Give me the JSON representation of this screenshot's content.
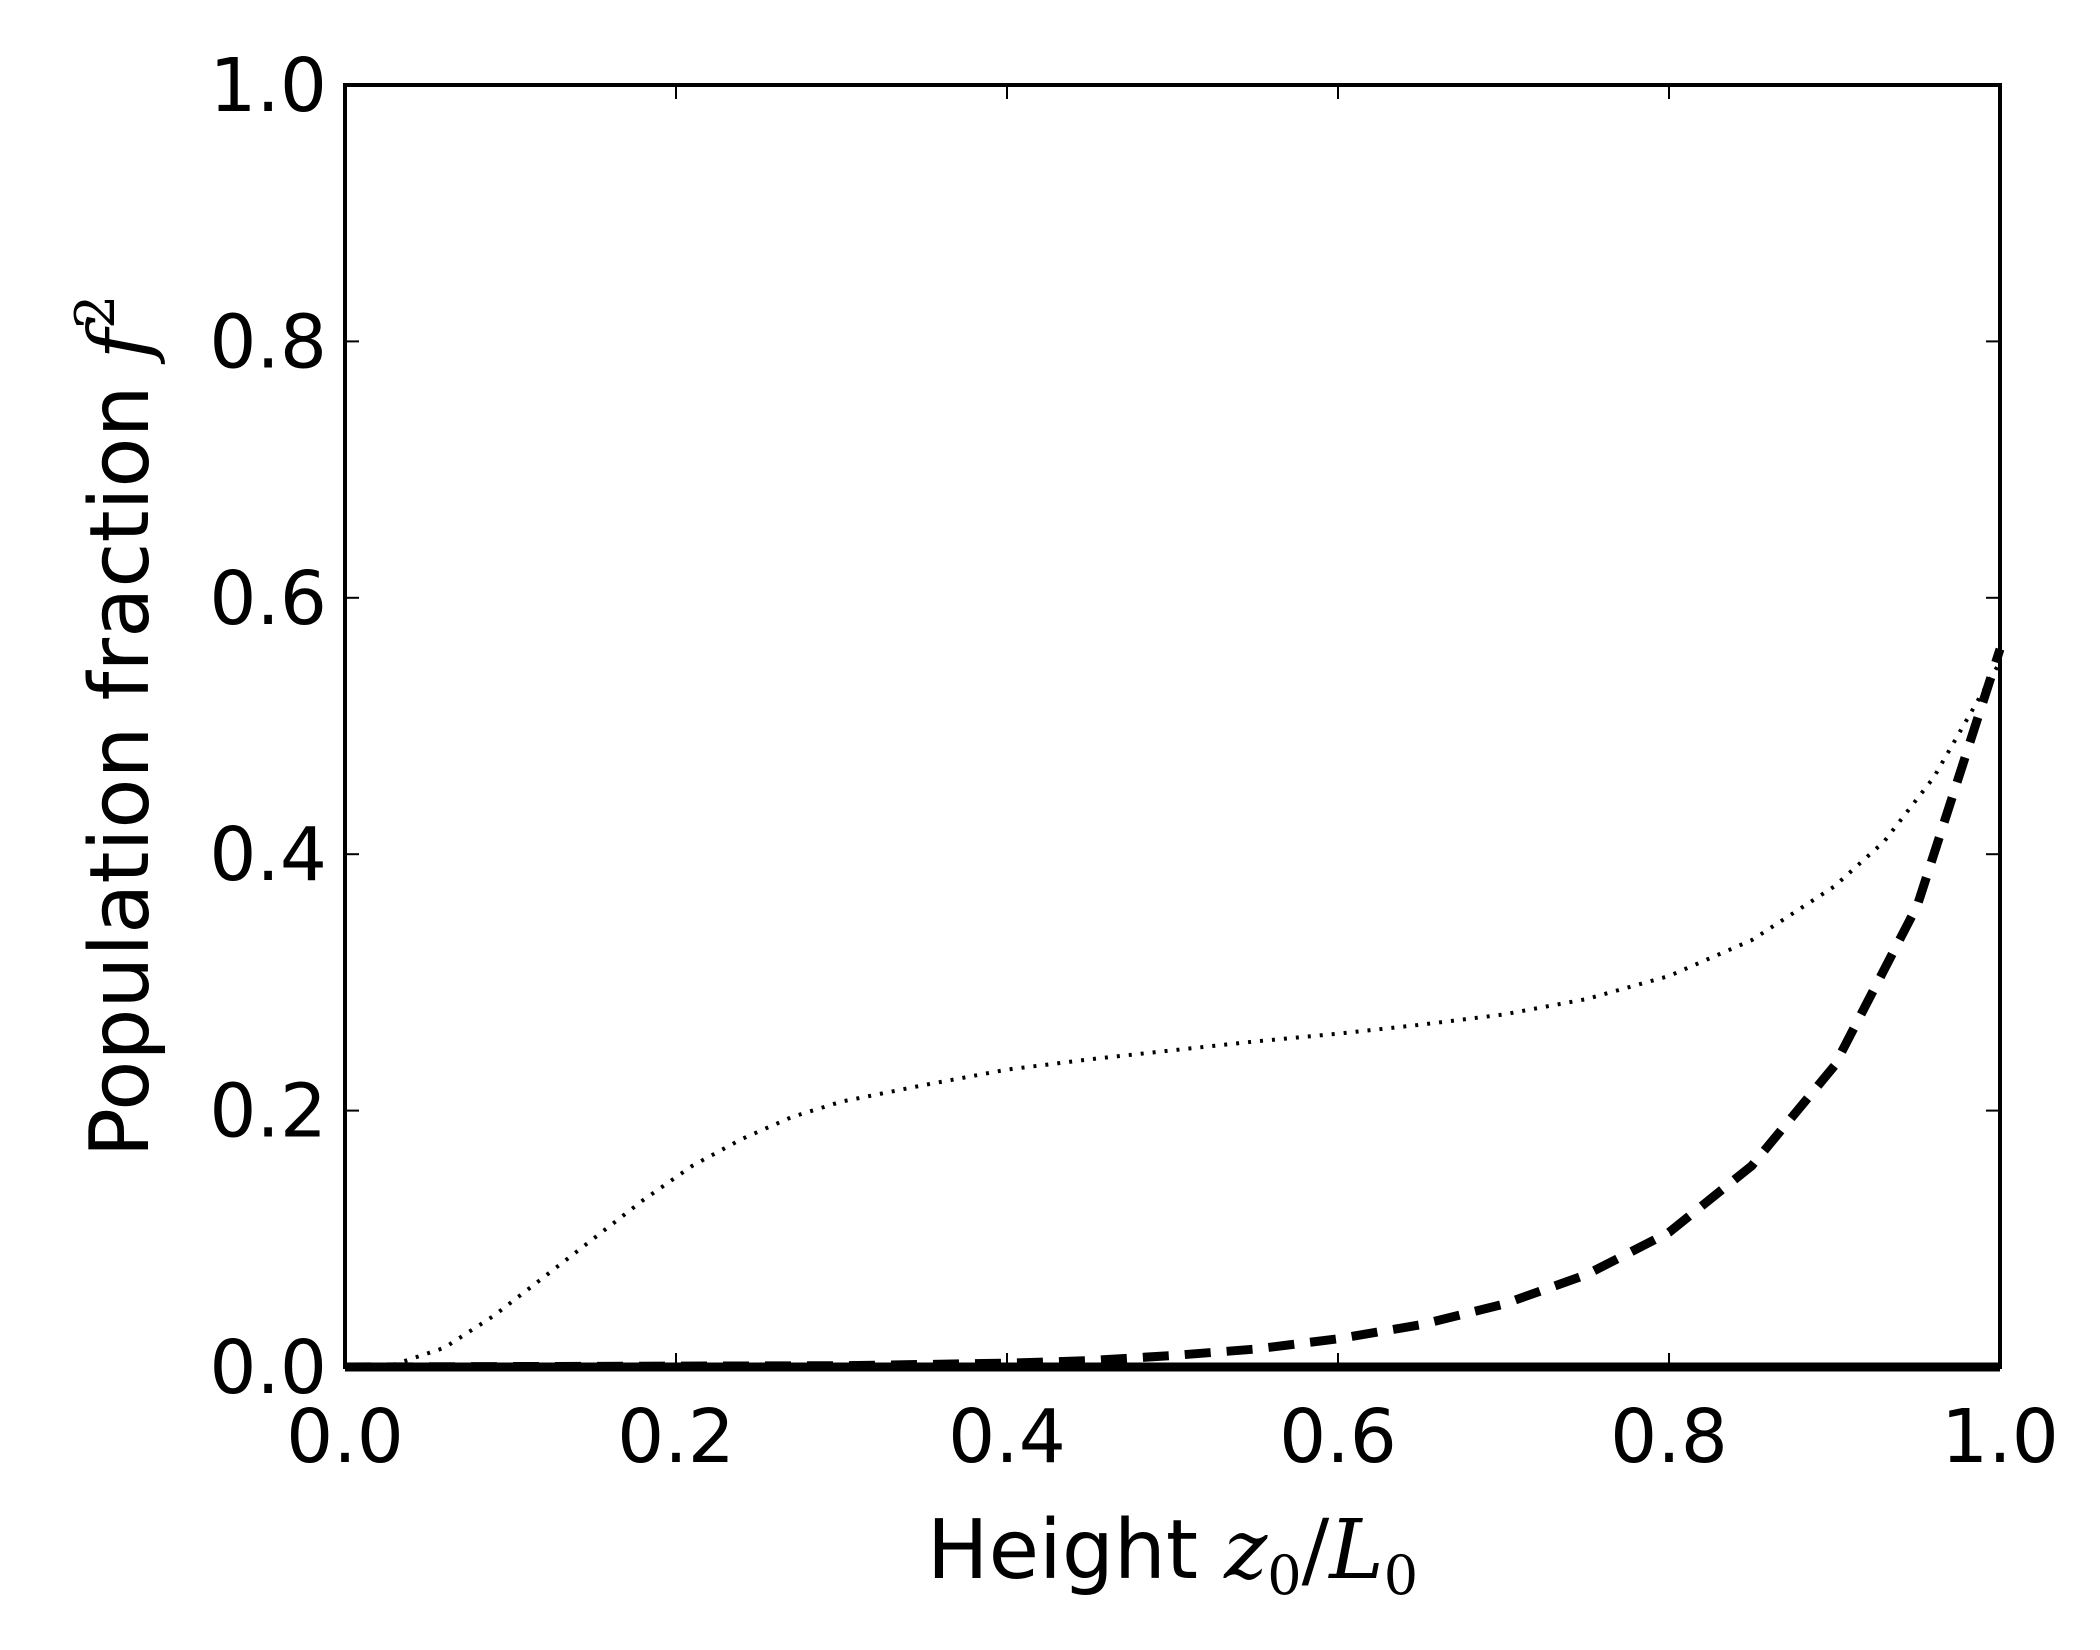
{
  "chart_data": {
    "type": "line",
    "xlabel": {
      "text": "Height ",
      "math_a": "z",
      "sub_a": "0",
      "slash": "/",
      "math_b": "L",
      "sub_b": "0"
    },
    "ylabel": {
      "text": "Population fraction ",
      "math": "f",
      "sup": "2"
    },
    "xlim": [
      0.0,
      1.0
    ],
    "ylim": [
      0.0,
      1.0
    ],
    "xticks": [
      "0.0",
      "0.2",
      "0.4",
      "0.6",
      "0.8",
      "1.0"
    ],
    "yticks": [
      "0.0",
      "0.2",
      "0.4",
      "0.6",
      "0.8",
      "1.0"
    ],
    "grid": false,
    "legend": "none",
    "series": [
      {
        "style": "solid",
        "color": "#000000",
        "x": [
          0.0,
          0.2,
          0.4,
          0.6,
          0.8,
          1.0
        ],
        "y": [
          0.0,
          0.0,
          0.0,
          0.0,
          0.0,
          0.0
        ]
      },
      {
        "style": "dashed",
        "color": "#000000",
        "x": [
          0.0,
          0.3,
          0.4,
          0.45,
          0.5,
          0.55,
          0.6,
          0.65,
          0.7,
          0.75,
          0.8,
          0.85,
          0.9,
          0.95,
          1.0
        ],
        "y": [
          0.0,
          0.001,
          0.003,
          0.005,
          0.009,
          0.014,
          0.022,
          0.033,
          0.049,
          0.072,
          0.105,
          0.157,
          0.235,
          0.36,
          0.56
        ]
      },
      {
        "style": "dotted",
        "color": "#000000",
        "x": [
          0.0,
          0.03,
          0.06,
          0.09,
          0.12,
          0.15,
          0.18,
          0.21,
          0.24,
          0.27,
          0.3,
          0.35,
          0.4,
          0.45,
          0.5,
          0.55,
          0.6,
          0.65,
          0.7,
          0.75,
          0.8,
          0.85,
          0.9,
          0.93,
          0.96,
          1.0
        ],
        "y": [
          0.0,
          0.002,
          0.015,
          0.04,
          0.07,
          0.1,
          0.13,
          0.157,
          0.178,
          0.195,
          0.207,
          0.22,
          0.232,
          0.24,
          0.247,
          0.254,
          0.26,
          0.267,
          0.275,
          0.287,
          0.305,
          0.333,
          0.375,
          0.41,
          0.46,
          0.55
        ]
      }
    ]
  }
}
